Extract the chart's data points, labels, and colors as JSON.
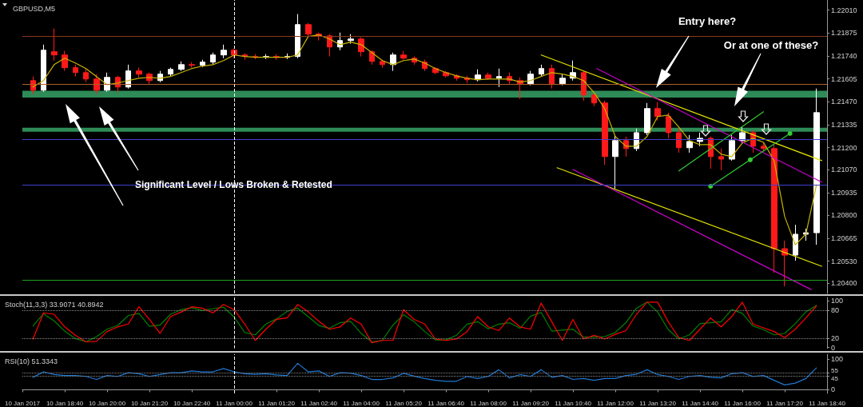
{
  "chart_data": [
    {
      "type": "candlestick",
      "title": "GBPUSD,M5",
      "x": [
        "2017-01-10T17:40",
        "2017-01-10T18:00",
        "2017-01-10T18:20",
        "2017-01-10T18:40",
        "2017-01-10T19:00",
        "2017-01-10T19:20",
        "2017-01-10T19:40",
        "2017-01-10T20:00",
        "2017-01-10T20:20",
        "2017-01-10T20:40",
        "2017-01-10T21:00",
        "2017-01-10T21:20",
        "2017-01-10T21:40",
        "2017-01-10T22:00",
        "2017-01-10T22:20",
        "2017-01-10T22:40",
        "2017-01-10T23:00",
        "2017-01-10T23:20",
        "2017-01-10T23:40",
        "2017-01-11T00:00",
        "2017-01-11T00:20",
        "2017-01-11T00:40",
        "2017-01-11T01:00",
        "2017-01-11T01:20",
        "2017-01-11T01:40",
        "2017-01-11T02:00",
        "2017-01-11T02:20",
        "2017-01-11T02:40",
        "2017-01-11T03:00",
        "2017-01-11T03:20",
        "2017-01-11T03:40",
        "2017-01-11T04:00",
        "2017-01-11T04:20",
        "2017-01-11T04:40",
        "2017-01-11T05:00",
        "2017-01-11T05:20",
        "2017-01-11T05:40",
        "2017-01-11T06:00",
        "2017-01-11T06:20",
        "2017-01-11T06:40",
        "2017-01-11T07:00",
        "2017-01-11T07:20",
        "2017-01-11T07:40",
        "2017-01-11T08:00",
        "2017-01-11T08:20",
        "2017-01-11T08:40",
        "2017-01-11T09:00",
        "2017-01-11T09:20",
        "2017-01-11T09:40",
        "2017-01-11T10:00",
        "2017-01-11T10:20",
        "2017-01-11T10:40",
        "2017-01-11T11:00",
        "2017-01-11T11:20",
        "2017-01-11T11:40",
        "2017-01-11T12:00",
        "2017-01-11T12:20",
        "2017-01-11T12:40",
        "2017-01-11T13:00",
        "2017-01-11T13:20",
        "2017-01-11T13:40",
        "2017-01-11T14:00",
        "2017-01-11T14:20",
        "2017-01-11T14:40",
        "2017-01-11T15:00",
        "2017-01-11T15:20",
        "2017-01-11T15:40",
        "2017-01-11T16:00",
        "2017-01-11T16:20",
        "2017-01-11T16:40",
        "2017-01-11T17:00",
        "2017-01-11T17:20",
        "2017-01-11T17:40",
        "2017-01-11T18:00",
        "2017-01-11T18:20"
      ],
      "ohlc": [
        [
          1.21595,
          1.21619,
          1.21515,
          1.21538
        ],
        [
          1.21538,
          1.21807,
          1.21529,
          1.21774
        ],
        [
          1.21765,
          1.21902,
          1.21713,
          1.21746
        ],
        [
          1.21746,
          1.2177,
          1.21652,
          1.21671
        ],
        [
          1.21671,
          1.21689,
          1.21619,
          1.21642
        ],
        [
          1.21642,
          1.21666,
          1.21586,
          1.21604
        ],
        [
          1.21604,
          1.21633,
          1.21515,
          1.21538
        ],
        [
          1.21538,
          1.21642,
          1.21529,
          1.21614
        ],
        [
          1.21614,
          1.21623,
          1.21524,
          1.21557
        ],
        [
          1.21557,
          1.21689,
          1.21548,
          1.21652
        ],
        [
          1.21652,
          1.21671,
          1.21614,
          1.21633
        ],
        [
          1.21633,
          1.21642,
          1.21576,
          1.21595
        ],
        [
          1.21595,
          1.21652,
          1.21586,
          1.21633
        ],
        [
          1.21633,
          1.21671,
          1.21619,
          1.21661
        ],
        [
          1.21661,
          1.21708,
          1.21652,
          1.21689
        ],
        [
          1.21689,
          1.21704,
          1.21671,
          1.21685
        ],
        [
          1.21685,
          1.21718,
          1.21675,
          1.21704
        ],
        [
          1.21704,
          1.2176,
          1.21689,
          1.21746
        ],
        [
          1.21746,
          1.21807,
          1.21727,
          1.21774
        ],
        [
          1.21774,
          1.21784,
          1.21727,
          1.21746
        ],
        [
          1.21746,
          1.21755,
          1.21718,
          1.21737
        ],
        [
          1.21737,
          1.21751,
          1.21722,
          1.21732
        ],
        [
          1.21732,
          1.21751,
          1.21722,
          1.21737
        ],
        [
          1.21737,
          1.21751,
          1.21718,
          1.21732
        ],
        [
          1.21732,
          1.21755,
          1.21722,
          1.21737
        ],
        [
          1.21737,
          1.21987,
          1.21727,
          1.21925
        ],
        [
          1.21925,
          1.21935,
          1.21855,
          1.21869
        ],
        [
          1.21869,
          1.21878,
          1.21831,
          1.21859
        ],
        [
          1.21859,
          1.21869,
          1.21737,
          1.21793
        ],
        [
          1.21793,
          1.21878,
          1.21774,
          1.21831
        ],
        [
          1.21831,
          1.21869,
          1.21812,
          1.2184
        ],
        [
          1.2184,
          1.2185,
          1.21737,
          1.21765
        ],
        [
          1.21765,
          1.21774,
          1.21689,
          1.21708
        ],
        [
          1.21708,
          1.21718,
          1.21671,
          1.21689
        ],
        [
          1.21689,
          1.2176,
          1.21652,
          1.21746
        ],
        [
          1.21746,
          1.2177,
          1.21718,
          1.21727
        ],
        [
          1.21727,
          1.21737,
          1.21689,
          1.21704
        ],
        [
          1.21704,
          1.21718,
          1.21652,
          1.21666
        ],
        [
          1.21666,
          1.21675,
          1.21633,
          1.21642
        ],
        [
          1.21642,
          1.21652,
          1.21614,
          1.21623
        ],
        [
          1.21623,
          1.21633,
          1.21595,
          1.21609
        ],
        [
          1.21609,
          1.21623,
          1.21581,
          1.216
        ],
        [
          1.216,
          1.21661,
          1.2159,
          1.21628
        ],
        [
          1.21628,
          1.21642,
          1.216,
          1.21609
        ],
        [
          1.21609,
          1.21666,
          1.21557,
          1.21619
        ],
        [
          1.21619,
          1.21642,
          1.21576,
          1.21595
        ],
        [
          1.21595,
          1.21614,
          1.21486,
          1.21576
        ],
        [
          1.21576,
          1.21652,
          1.21567,
          1.21633
        ],
        [
          1.21633,
          1.21689,
          1.21619,
          1.21666
        ],
        [
          1.21666,
          1.21689,
          1.21548,
          1.21576
        ],
        [
          1.21576,
          1.21633,
          1.21567,
          1.21609
        ],
        [
          1.21609,
          1.21713,
          1.21595,
          1.21642
        ],
        [
          1.21642,
          1.21652,
          1.21477,
          1.2151
        ],
        [
          1.2151,
          1.21524,
          1.21444,
          1.21463
        ],
        [
          1.21463,
          1.21477,
          1.21099,
          1.21147
        ],
        [
          1.21147,
          1.21274,
          1.20958,
          1.21241
        ],
        [
          1.21241,
          1.21265,
          1.21147,
          1.21194
        ],
        [
          1.21194,
          1.21312,
          1.2118,
          1.21288
        ],
        [
          1.21288,
          1.21463,
          1.21274,
          1.2143
        ],
        [
          1.2143,
          1.21468,
          1.21359,
          1.21383
        ],
        [
          1.21383,
          1.21406,
          1.21255,
          1.21288
        ],
        [
          1.21288,
          1.21312,
          1.2117,
          1.21199
        ],
        [
          1.21199,
          1.21274,
          1.2117,
          1.21236
        ],
        [
          1.21236,
          1.21288,
          1.21208,
          1.21255
        ],
        [
          1.21255,
          1.21265,
          1.21076,
          1.21147
        ],
        [
          1.21147,
          1.21194,
          1.21066,
          1.21132
        ],
        [
          1.21132,
          1.21274,
          1.21123,
          1.21241
        ],
        [
          1.21241,
          1.21321,
          1.21227,
          1.21288
        ],
        [
          1.21288,
          1.21302,
          1.2117,
          1.21208
        ],
        [
          1.21208,
          1.21227,
          1.2118,
          1.21194
        ],
        [
          1.21194,
          1.21217,
          1.20462,
          1.20604
        ],
        [
          1.20604,
          1.20651,
          1.20382,
          1.20566
        ],
        [
          1.20566,
          1.20745,
          1.20533,
          1.20689
        ],
        [
          1.20689,
          1.20722,
          1.20651,
          1.20698
        ],
        [
          1.20698,
          1.21548,
          1.20627,
          1.21406
        ]
      ],
      "series": [
        {
          "type": "line",
          "color": "#c8b400",
          "values": [
            1.21557,
            1.21595,
            1.21689,
            1.21727,
            1.21699,
            1.21666,
            1.21619,
            1.21571,
            1.21581,
            1.21595,
            1.21609,
            1.21614,
            1.21609,
            1.21619,
            1.21642,
            1.21666,
            1.2168,
            1.21689,
            1.21713,
            1.21746,
            1.21737,
            1.21732,
            1.21732,
            1.21732,
            1.21732,
            1.21746,
            1.21855,
            1.21864,
            1.2184,
            1.21807,
            1.21822,
            1.21807,
            1.2176,
            1.21713,
            1.21689,
            1.21713,
            1.21722,
            1.21699,
            1.21666,
            1.21642,
            1.21623,
            1.21609,
            1.216,
            1.21604,
            1.21604,
            1.21604,
            1.21586,
            1.21595,
            1.21619,
            1.21642,
            1.21633,
            1.21619,
            1.21595,
            1.21524,
            1.2143,
            1.21265,
            1.21208,
            1.21208,
            1.21265,
            1.21383,
            1.21392,
            1.21321,
            1.21241,
            1.21217,
            1.21217,
            1.21161,
            1.21147,
            1.21227,
            1.21255,
            1.21231,
            1.21123,
            1.20793,
            1.20627,
            1.20689,
            1.20981
          ]
        },
        {
          "type": "line",
          "color": "#e0e000",
          "x": [
            "2017-01-11T09:40",
            "2017-01-11T18:30"
          ],
          "values": [
            1.21746,
            1.21123
          ]
        },
        {
          "type": "line",
          "color": "#cc00cc",
          "x": [
            "2017-01-11T11:25",
            "2017-01-11T18:30"
          ],
          "values": [
            1.21666,
            1.20996
          ]
        },
        {
          "type": "line",
          "color": "#e0e000",
          "x": [
            "2017-01-11T10:10",
            "2017-01-11T18:30"
          ],
          "values": [
            1.21081,
            1.205
          ]
        },
        {
          "type": "line",
          "color": "#cc00cc",
          "x": [
            "2017-01-11T10:40",
            "2017-01-11T18:10"
          ],
          "values": [
            1.21071,
            1.20363
          ]
        },
        {
          "type": "line",
          "color": "#33cc33",
          "x": [
            "2017-01-11T14:00",
            "2017-01-11T16:40"
          ],
          "values": [
            1.21062,
            1.21411
          ]
        },
        {
          "type": "line",
          "color": "#33cc33",
          "marker": "circle",
          "x": [
            "2017-01-11T15:00",
            "2017-01-11T16:15",
            "2017-01-11T17:30"
          ],
          "values": [
            1.20972,
            1.21128,
            1.21283
          ]
        }
      ],
      "xlim": [
        "2017-01-10T17:20",
        "2017-01-11T18:40"
      ],
      "ylim": [
        1.2034,
        1.2207
      ],
      "yticks": [
        {
          "value": 1.2201,
          "label": "1.22010"
        },
        {
          "value": 1.21875,
          "label": "1.21875"
        },
        {
          "value": 1.2174,
          "label": "1.21740"
        },
        {
          "value": 1.21605,
          "label": "1.21605"
        },
        {
          "value": 1.2147,
          "label": "1.21470"
        },
        {
          "value": 1.21335,
          "label": "1.21335"
        },
        {
          "value": 1.212,
          "label": "1.21200"
        },
        {
          "value": 1.2107,
          "label": "1.21070"
        },
        {
          "value": 1.20935,
          "label": "1.20935"
        },
        {
          "value": 1.208,
          "label": "1.20800"
        },
        {
          "value": 1.20665,
          "label": "1.20665"
        },
        {
          "value": 1.2053,
          "label": "1.20530"
        },
        {
          "value": 1.204,
          "label": "1.20400"
        }
      ],
      "tick_labels": "y",
      "bands": [
        {
          "axis": "y",
          "from": 1.21495,
          "to": 1.21535,
          "color": "#2e8b57"
        },
        {
          "axis": "y",
          "from": 1.21293,
          "to": 1.21317,
          "color": "#2e8b57"
        }
      ],
      "ref_lines": [
        {
          "axis": "y",
          "value": 1.21855,
          "color": "#8a3a1c"
        },
        {
          "axis": "y",
          "value": 1.21576,
          "color": "#b0602a"
        },
        {
          "axis": "y",
          "value": 1.2125,
          "color": "#4040d0"
        },
        {
          "axis": "y",
          "value": 1.20981,
          "color": "#4040d0"
        },
        {
          "axis": "y",
          "value": 1.2042,
          "color": "#20a020"
        },
        {
          "axis": "x",
          "value": "2017-01-11T00:00",
          "color": "#ffffff",
          "line_style": "dashed"
        }
      ],
      "annotations": [
        "Entry here?",
        "Or at one of these?",
        "Significant Level / Lows Broken & Retested"
      ]
    },
    {
      "type": "line",
      "title": "Stoch(11,3,3) 33.9071 40.8942",
      "x": [
        "2017-01-10T17:40",
        "2017-01-10T18:00",
        "2017-01-10T18:20",
        "2017-01-10T18:40",
        "2017-01-10T19:00",
        "2017-01-10T19:20",
        "2017-01-10T19:40",
        "2017-01-10T20:00",
        "2017-01-10T20:20",
        "2017-01-10T20:40",
        "2017-01-10T21:00",
        "2017-01-10T21:20",
        "2017-01-10T21:40",
        "2017-01-10T22:00",
        "2017-01-10T22:20",
        "2017-01-10T22:40",
        "2017-01-10T23:00",
        "2017-01-10T23:20",
        "2017-01-10T23:40",
        "2017-01-11T00:00",
        "2017-01-11T00:20",
        "2017-01-11T00:40",
        "2017-01-11T01:00",
        "2017-01-11T01:20",
        "2017-01-11T01:40",
        "2017-01-11T02:00",
        "2017-01-11T02:20",
        "2017-01-11T02:40",
        "2017-01-11T03:00",
        "2017-01-11T03:20",
        "2017-01-11T03:40",
        "2017-01-11T04:00",
        "2017-01-11T04:20",
        "2017-01-11T04:40",
        "2017-01-11T05:00",
        "2017-01-11T05:20",
        "2017-01-11T05:40",
        "2017-01-11T06:00",
        "2017-01-11T06:20",
        "2017-01-11T06:40",
        "2017-01-11T07:00",
        "2017-01-11T07:20",
        "2017-01-11T07:40",
        "2017-01-11T08:00",
        "2017-01-11T08:20",
        "2017-01-11T08:40",
        "2017-01-11T09:00",
        "2017-01-11T09:20",
        "2017-01-11T09:40",
        "2017-01-11T10:00",
        "2017-01-11T10:20",
        "2017-01-11T10:40",
        "2017-01-11T11:00",
        "2017-01-11T11:20",
        "2017-01-11T11:40",
        "2017-01-11T12:00",
        "2017-01-11T12:20",
        "2017-01-11T12:40",
        "2017-01-11T13:00",
        "2017-01-11T13:20",
        "2017-01-11T13:40",
        "2017-01-11T14:00",
        "2017-01-11T14:20",
        "2017-01-11T14:40",
        "2017-01-11T15:00",
        "2017-01-11T15:20",
        "2017-01-11T15:40",
        "2017-01-11T16:00",
        "2017-01-11T16:20",
        "2017-01-11T16:40",
        "2017-01-11T17:00",
        "2017-01-11T17:20",
        "2017-01-11T17:40",
        "2017-01-11T18:00",
        "2017-01-11T18:20"
      ],
      "series": [
        {
          "color": "#008000",
          "values": [
            46,
            72,
            57,
            35,
            19,
            12,
            23,
            39,
            47,
            68,
            73,
            45,
            48,
            71,
            81,
            85,
            79,
            83,
            86,
            65,
            32,
            27,
            50,
            61,
            77,
            84,
            66,
            47,
            41,
            53,
            56,
            30,
            12,
            15,
            48,
            70,
            55,
            34,
            16,
            16,
            26,
            50,
            55,
            40,
            50,
            53,
            41,
            67,
            75,
            35,
            37,
            39,
            22,
            22,
            23,
            32,
            53,
            84,
            97,
            76,
            38,
            18,
            27,
            51,
            53,
            55,
            81,
            73,
            46,
            38,
            27,
            30,
            51,
            76,
            90
          ]
        },
        {
          "color": "#ff0000",
          "values": [
            18,
            74,
            71,
            44,
            26,
            12,
            13,
            34,
            44,
            50,
            87,
            60,
            30,
            66,
            76,
            87,
            84,
            74,
            92,
            81,
            50,
            15,
            39,
            60,
            63,
            92,
            76,
            56,
            39,
            44,
            63,
            50,
            10,
            15,
            15,
            81,
            60,
            50,
            18,
            15,
            18,
            34,
            66,
            44,
            36,
            63,
            44,
            39,
            95,
            55,
            15,
            60,
            18,
            26,
            18,
            28,
            36,
            71,
            97,
            97,
            55,
            21,
            15,
            39,
            63,
            44,
            66,
            97,
            50,
            42,
            34,
            21,
            39,
            63,
            89
          ]
        }
      ],
      "xlim": [
        "2017-01-10T17:20",
        "2017-01-11T18:40"
      ],
      "ylim": [
        -2,
        107
      ],
      "yticks": [
        0,
        20,
        80,
        100
      ],
      "tick_labels": "y",
      "ref_lines": [
        {
          "axis": "y",
          "value": 80,
          "color": "#8a8a8a",
          "line_style": "dotted"
        },
        {
          "axis": "y",
          "value": 20,
          "color": "#8a8a8a",
          "line_style": "dotted"
        },
        {
          "axis": "x",
          "value": "2017-01-11T00:00",
          "color": "#ffffff",
          "line_style": "dashed"
        }
      ]
    },
    {
      "type": "line",
      "title": "RSI(10) 51.3343",
      "x": [
        "2017-01-10T17:40",
        "2017-01-10T18:00",
        "2017-01-10T18:20",
        "2017-01-10T18:40",
        "2017-01-10T19:00",
        "2017-01-10T19:20",
        "2017-01-10T19:40",
        "2017-01-10T20:00",
        "2017-01-10T20:20",
        "2017-01-10T20:40",
        "2017-01-10T21:00",
        "2017-01-10T21:20",
        "2017-01-10T21:40",
        "2017-01-10T22:00",
        "2017-01-10T22:20",
        "2017-01-10T22:40",
        "2017-01-10T23:00",
        "2017-01-10T23:20",
        "2017-01-10T23:40",
        "2017-01-11T00:00",
        "2017-01-11T00:20",
        "2017-01-11T00:40",
        "2017-01-11T01:00",
        "2017-01-11T01:20",
        "2017-01-11T01:40",
        "2017-01-11T02:00",
        "2017-01-11T02:20",
        "2017-01-11T02:40",
        "2017-01-11T03:00",
        "2017-01-11T03:20",
        "2017-01-11T03:40",
        "2017-01-11T04:00",
        "2017-01-11T04:20",
        "2017-01-11T04:40",
        "2017-01-11T05:00",
        "2017-01-11T05:20",
        "2017-01-11T05:40",
        "2017-01-11T06:00",
        "2017-01-11T06:20",
        "2017-01-11T06:40",
        "2017-01-11T07:00",
        "2017-01-11T07:20",
        "2017-01-11T07:40",
        "2017-01-11T08:00",
        "2017-01-11T08:20",
        "2017-01-11T08:40",
        "2017-01-11T09:00",
        "2017-01-11T09:20",
        "2017-01-11T09:40",
        "2017-01-11T10:00",
        "2017-01-11T10:20",
        "2017-01-11T10:40",
        "2017-01-11T11:00",
        "2017-01-11T11:20",
        "2017-01-11T11:40",
        "2017-01-11T12:00",
        "2017-01-11T12:20",
        "2017-01-11T12:40",
        "2017-01-11T13:00",
        "2017-01-11T13:20",
        "2017-01-11T13:40",
        "2017-01-11T14:00",
        "2017-01-11T14:20",
        "2017-01-11T14:40",
        "2017-01-11T15:00",
        "2017-01-11T15:20",
        "2017-01-11T15:40",
        "2017-01-11T16:00",
        "2017-01-11T16:20",
        "2017-01-11T16:40",
        "2017-01-11T17:00",
        "2017-01-11T17:20",
        "2017-01-11T17:40",
        "2017-01-11T18:00",
        "2017-01-11T18:20"
      ],
      "series": [
        {
          "color": "#1e78d2",
          "values": [
            41,
            59,
            50,
            47,
            47,
            44,
            34,
            47,
            44,
            56,
            53,
            44,
            50,
            56,
            56,
            62,
            59,
            59,
            70,
            59,
            53,
            51,
            53,
            49,
            47,
            87,
            59,
            62,
            44,
            56,
            55,
            47,
            34,
            34,
            39,
            54,
            45,
            37,
            31,
            28,
            28,
            44,
            37,
            44,
            66,
            39,
            50,
            44,
            66,
            41,
            47,
            34,
            37,
            31,
            37,
            37,
            47,
            51,
            66,
            50,
            44,
            34,
            44,
            47,
            41,
            39,
            53,
            56,
            44,
            47,
            31,
            16,
            22,
            37,
            72
          ]
        }
      ],
      "xlim": [
        "2017-01-10T17:20",
        "2017-01-11T18:40"
      ],
      "ylim": [
        -12,
        117
      ],
      "yticks": [
        0,
        45,
        55,
        100
      ],
      "xticks": [
        {
          "value": "2017-01-10T17:20",
          "label": "10 Jan 2017"
        },
        {
          "value": "2017-01-10T18:40",
          "label": "10 Jan 18:40"
        },
        {
          "value": "2017-01-10T20:00",
          "label": "10 Jan 20:00"
        },
        {
          "value": "2017-01-10T21:20",
          "label": "10 Jan 21:20"
        },
        {
          "value": "2017-01-10T22:40",
          "label": "10 Jan 22:40"
        },
        {
          "value": "2017-01-11T00:00",
          "label": "11 Jan 00:00"
        },
        {
          "value": "2017-01-11T01:20",
          "label": "11 Jan 01:20"
        },
        {
          "value": "2017-01-11T02:40",
          "label": "11 Jan 02:40"
        },
        {
          "value": "2017-01-11T04:00",
          "label": "11 Jan 04:00"
        },
        {
          "value": "2017-01-11T05:20",
          "label": "11 Jan 05:20"
        },
        {
          "value": "2017-01-11T06:40",
          "label": "11 Jan 06:40"
        },
        {
          "value": "2017-01-11T08:00",
          "label": "11 Jan 08:00"
        },
        {
          "value": "2017-01-11T09:20",
          "label": "11 Jan 09:20"
        },
        {
          "value": "2017-01-11T10:40",
          "label": "11 Jan 10:40"
        },
        {
          "value": "2017-01-11T12:00",
          "label": "11 Jan 12:00"
        },
        {
          "value": "2017-01-11T13:20",
          "label": "11 Jan 13:20"
        },
        {
          "value": "2017-01-11T14:40",
          "label": "11 Jan 14:40"
        },
        {
          "value": "2017-01-11T16:00",
          "label": "11 Jan 16:00"
        },
        {
          "value": "2017-01-11T17:20",
          "label": "11 Jan 17:20"
        },
        {
          "value": "2017-01-11T18:40",
          "label": "11 Jan 18:40"
        }
      ],
      "ref_lines": [
        {
          "axis": "y",
          "value": 55,
          "color": "#8a8a8a",
          "line_style": "dotted"
        },
        {
          "axis": "y",
          "value": 45,
          "color": "#8a8a8a",
          "line_style": "dotted"
        },
        {
          "axis": "x",
          "value": "2017-01-11T00:00",
          "color": "#ffffff",
          "line_style": "dashed"
        }
      ]
    }
  ]
}
